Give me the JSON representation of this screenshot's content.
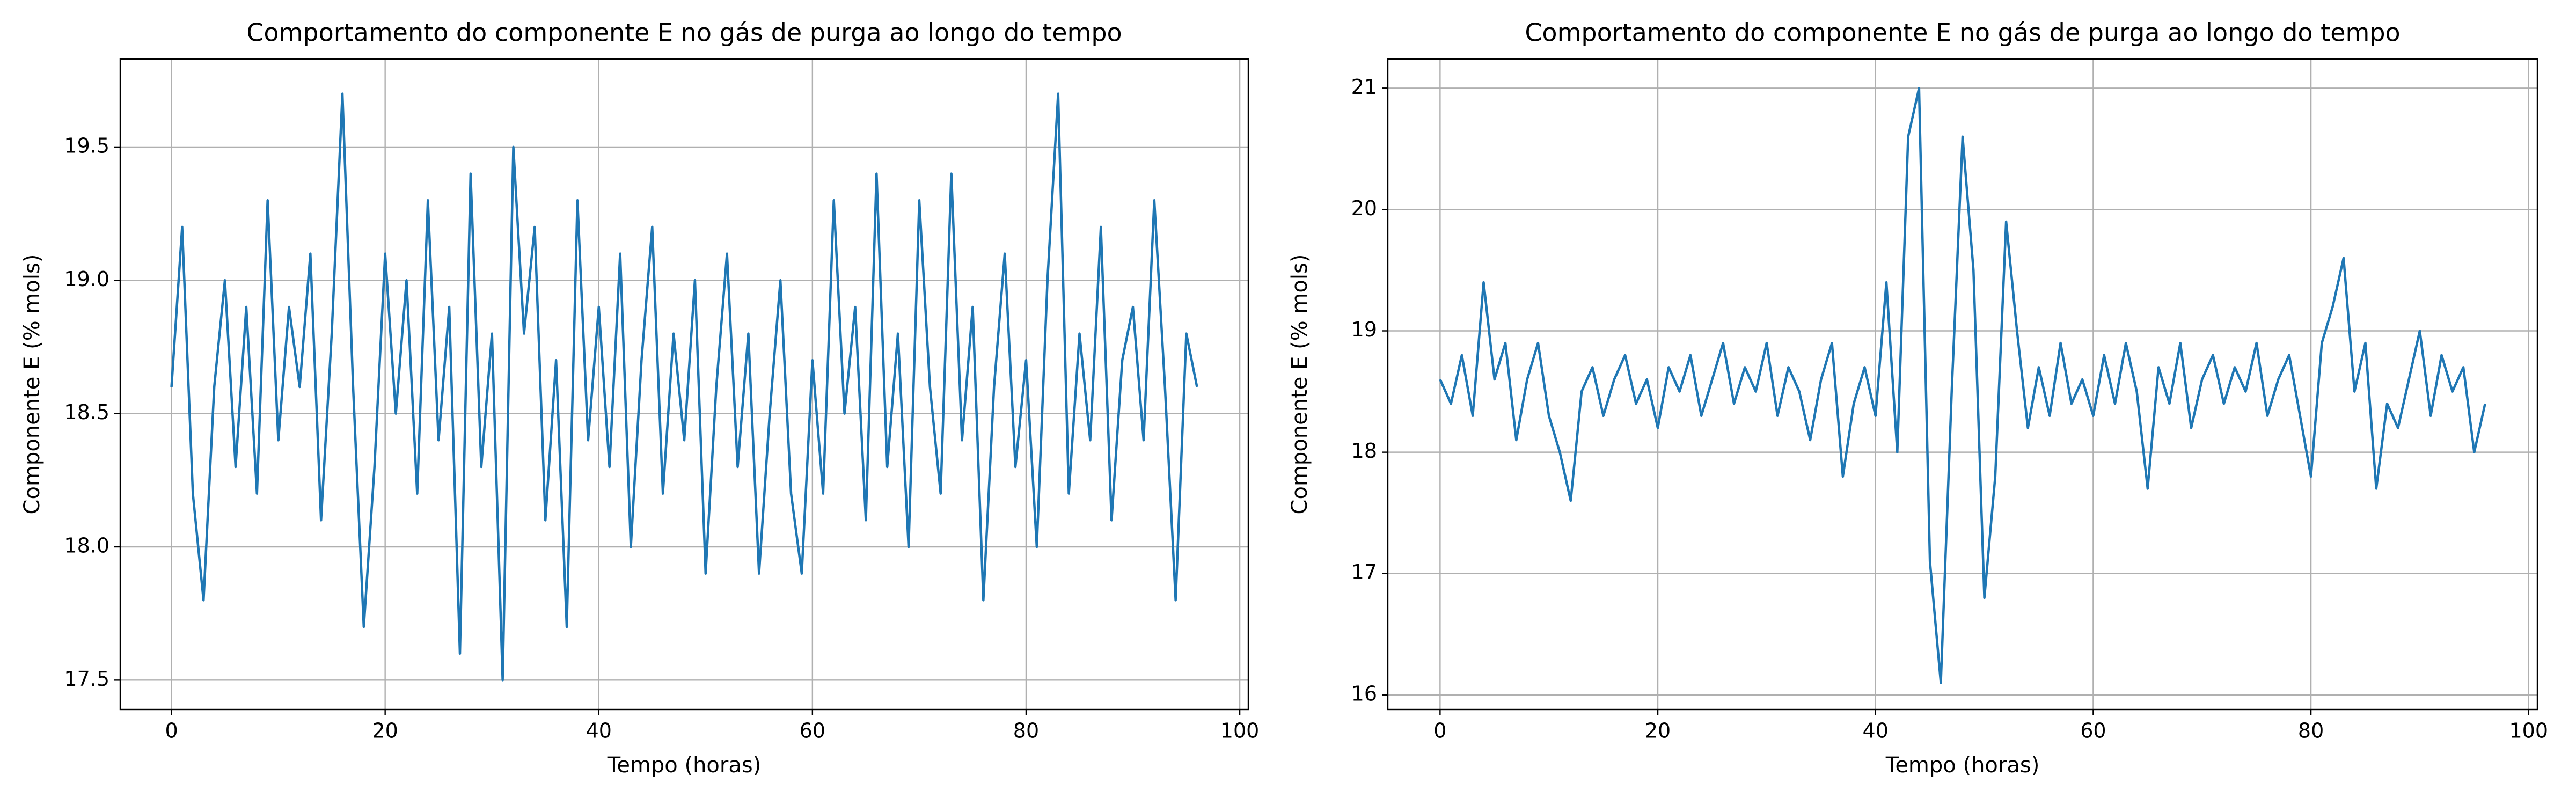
{
  "chart_data": [
    {
      "type": "line",
      "title": "Comportamento do componente E no gás de purga ao longo do tempo",
      "xlabel": "Tempo (horas)",
      "ylabel": "Componente E (% mols)",
      "color": "#1f77b4",
      "grid": true,
      "x": [
        0,
        1,
        2,
        3,
        4,
        5,
        6,
        7,
        8,
        9,
        10,
        11,
        12,
        13,
        14,
        15,
        16,
        17,
        18,
        19,
        20,
        21,
        22,
        23,
        24,
        25,
        26,
        27,
        28,
        29,
        30,
        31,
        32,
        33,
        34,
        35,
        36,
        37,
        38,
        39,
        40,
        41,
        42,
        43,
        44,
        45,
        46,
        47,
        48,
        49,
        50,
        51,
        52,
        53,
        54,
        55,
        56,
        57,
        58,
        59,
        60,
        61,
        62,
        63,
        64,
        65,
        66,
        67,
        68,
        69,
        70,
        71,
        72,
        73,
        74,
        75,
        76,
        77,
        78,
        79,
        80,
        81,
        82,
        83,
        84,
        85,
        86,
        87,
        88,
        89,
        90,
        91,
        92,
        93,
        94,
        95,
        96
      ],
      "values": [
        18.6,
        19.2,
        18.2,
        17.8,
        18.6,
        19.0,
        18.3,
        18.9,
        18.2,
        19.3,
        18.4,
        18.9,
        18.6,
        19.1,
        18.1,
        18.8,
        19.7,
        18.6,
        17.7,
        18.3,
        19.1,
        18.5,
        19.0,
        18.2,
        19.3,
        18.4,
        18.9,
        17.6,
        19.4,
        18.3,
        18.8,
        17.5,
        19.5,
        18.8,
        19.2,
        18.1,
        18.7,
        17.7,
        19.3,
        18.4,
        18.9,
        18.3,
        19.1,
        18.0,
        18.7,
        19.2,
        18.2,
        18.8,
        18.4,
        19.0,
        17.9,
        18.6,
        19.1,
        18.3,
        18.8,
        17.9,
        18.5,
        19.0,
        18.2,
        17.9,
        18.7,
        18.2,
        19.3,
        18.5,
        18.9,
        18.1,
        19.4,
        18.3,
        18.8,
        18.0,
        19.3,
        18.6,
        18.2,
        19.4,
        18.4,
        18.9,
        17.8,
        18.6,
        19.1,
        18.3,
        18.7,
        18.0,
        19.0,
        19.7,
        18.2,
        18.8,
        18.4,
        19.2,
        18.1,
        18.7,
        18.9,
        18.4,
        19.3,
        18.6,
        17.8,
        18.8,
        18.6
      ],
      "xlim": [
        -4.8,
        100.8
      ],
      "xticks": [
        0,
        20,
        40,
        60,
        80,
        100
      ],
      "ylim": [
        17.39,
        19.83
      ],
      "yticks": [
        17.5,
        {
          "value": 18,
          "label": "18.0"
        },
        18.5,
        {
          "value": 19,
          "label": "19.0"
        },
        19.5
      ]
    },
    {
      "type": "line",
      "title": "Comportamento do componente E no gás de purga ao longo do tempo",
      "xlabel": "Tempo (horas)",
      "ylabel": "Componente E (% mols)",
      "color": "#1f77b4",
      "grid": true,
      "x": [
        0,
        1,
        2,
        3,
        4,
        5,
        6,
        7,
        8,
        9,
        10,
        11,
        12,
        13,
        14,
        15,
        16,
        17,
        18,
        19,
        20,
        21,
        22,
        23,
        24,
        25,
        26,
        27,
        28,
        29,
        30,
        31,
        32,
        33,
        34,
        35,
        36,
        37,
        38,
        39,
        40,
        41,
        42,
        43,
        44,
        45,
        46,
        47,
        48,
        49,
        50,
        51,
        52,
        53,
        54,
        55,
        56,
        57,
        58,
        59,
        60,
        61,
        62,
        63,
        64,
        65,
        66,
        67,
        68,
        69,
        70,
        71,
        72,
        73,
        74,
        75,
        76,
        77,
        78,
        79,
        80,
        81,
        82,
        83,
        84,
        85,
        86,
        87,
        88,
        89,
        90,
        91,
        92,
        93,
        94,
        95,
        96
      ],
      "values": [
        18.6,
        18.4,
        18.8,
        18.3,
        19.4,
        18.6,
        18.9,
        18.1,
        18.6,
        18.9,
        18.3,
        18.0,
        17.6,
        18.5,
        18.7,
        18.3,
        18.6,
        18.8,
        18.4,
        18.6,
        18.2,
        18.7,
        18.5,
        18.8,
        18.3,
        18.6,
        18.9,
        18.4,
        18.7,
        18.5,
        18.9,
        18.3,
        18.7,
        18.5,
        18.1,
        18.6,
        18.9,
        17.8,
        18.4,
        18.7,
        18.3,
        19.4,
        18.0,
        20.6,
        21.0,
        17.1,
        16.1,
        18.5,
        20.6,
        19.5,
        16.8,
        17.8,
        19.9,
        19.0,
        18.2,
        18.7,
        18.3,
        18.9,
        18.4,
        18.6,
        18.3,
        18.8,
        18.4,
        18.9,
        18.5,
        17.7,
        18.7,
        18.4,
        18.9,
        18.2,
        18.6,
        18.8,
        18.4,
        18.7,
        18.5,
        18.9,
        18.3,
        18.6,
        18.8,
        18.3,
        17.8,
        18.9,
        19.2,
        19.6,
        18.5,
        18.9,
        17.7,
        18.4,
        18.2,
        18.6,
        19.0,
        18.3,
        18.8,
        18.5,
        18.7,
        18.0,
        18.4
      ],
      "xlim": [
        -4.8,
        100.8
      ],
      "xticks": [
        0,
        20,
        40,
        60,
        80,
        100
      ],
      "ylim": [
        15.88,
        21.24
      ],
      "yticks": [
        16,
        17,
        18,
        19,
        20,
        21
      ]
    }
  ]
}
